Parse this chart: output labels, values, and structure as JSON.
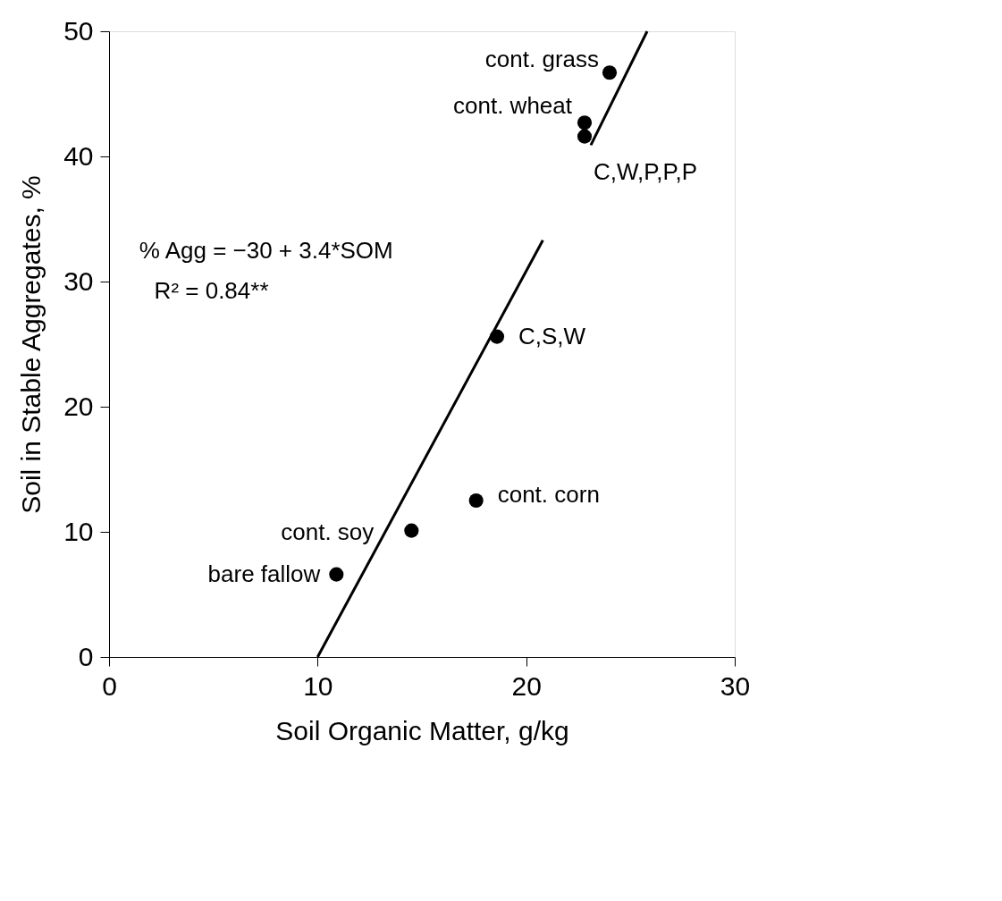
{
  "chart_data": {
    "type": "scatter",
    "xlabel": "Soil Organic Matter, g/kg",
    "ylabel": "Soil in Stable Aggregates, %",
    "xlim": [
      0,
      30
    ],
    "ylim": [
      0,
      50
    ],
    "xticks": [
      0,
      10,
      20,
      30
    ],
    "yticks": [
      0,
      10,
      20,
      30,
      40,
      50
    ],
    "grid": false,
    "marker": "circle",
    "series": [
      {
        "type": "scatter",
        "color": "#000000",
        "x": [
          24.0,
          22.8,
          22.8,
          18.6,
          17.6,
          14.5,
          10.9
        ],
        "values": [
          46.7,
          42.7,
          41.6,
          25.6,
          12.5,
          10.1,
          6.6
        ]
      },
      {
        "type": "line",
        "color": "#000000",
        "line_style": "solid",
        "marker": "none",
        "x": [
          10,
          20.8,
          22.0,
          23.1,
          25.8
        ],
        "values": [
          0,
          33.3,
          null,
          40.9,
          50
        ]
      }
    ],
    "annotations": [
      {
        "text": "cont. grass",
        "x": 24.0,
        "y": 46.7
      },
      {
        "text": "cont. wheat",
        "x": 22.8,
        "y": 42.7
      },
      {
        "text": "C,W,P,P,P",
        "x": 22.8,
        "y": 41.6
      },
      {
        "text": "C,S,W",
        "x": 18.6,
        "y": 25.6
      },
      {
        "text": "cont. corn",
        "x": 17.6,
        "y": 12.5
      },
      {
        "text": "cont. soy",
        "x": 14.5,
        "y": 10.1
      },
      {
        "text": "bare fallow",
        "x": 10.9,
        "y": 6.6
      },
      "% Agg = −30 + 3.4*SOM",
      "R² = 0.84**"
    ]
  }
}
